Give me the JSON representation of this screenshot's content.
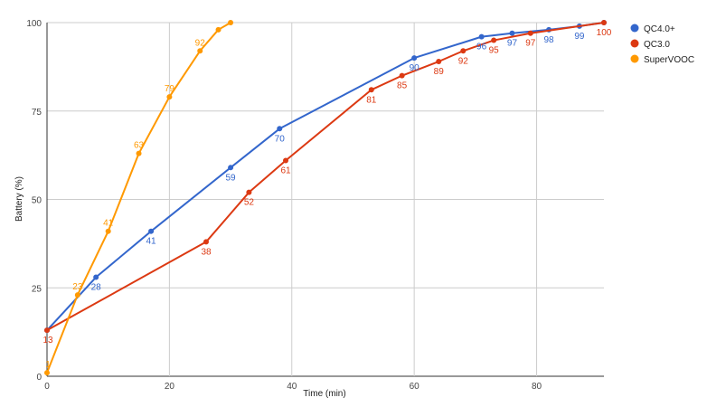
{
  "chart_data": {
    "type": "line",
    "title": "",
    "xlabel": "Time (min)",
    "ylabel": "Battery (%)",
    "xlim": [
      0,
      91
    ],
    "ylim": [
      0,
      100
    ],
    "x_ticks": [
      0,
      20,
      40,
      60,
      80
    ],
    "y_ticks": [
      0,
      25,
      50,
      75,
      100
    ],
    "grid": true,
    "legend_position": "right",
    "series": [
      {
        "name": "QC4.0+",
        "color": "#3366cc",
        "points": [
          [
            0,
            13
          ],
          [
            8,
            28
          ],
          [
            17,
            41
          ],
          [
            30,
            59
          ],
          [
            38,
            70
          ],
          [
            60,
            90
          ],
          [
            71,
            96
          ],
          [
            76,
            97
          ],
          [
            82,
            98
          ],
          [
            87,
            99
          ],
          [
            91,
            100
          ]
        ],
        "labels": [
          "",
          "28",
          "41",
          "59",
          "70",
          "90",
          "96",
          "97",
          "98",
          "99",
          ""
        ]
      },
      {
        "name": "QC3.0",
        "color": "#dc3912",
        "points": [
          [
            0,
            13
          ],
          [
            26,
            38
          ],
          [
            33,
            52
          ],
          [
            39,
            61
          ],
          [
            53,
            81
          ],
          [
            58,
            85
          ],
          [
            64,
            89
          ],
          [
            68,
            92
          ],
          [
            73,
            95
          ],
          [
            79,
            97
          ],
          [
            91,
            100
          ]
        ],
        "labels": [
          "13",
          "38",
          "52",
          "61",
          "81",
          "85",
          "89",
          "92",
          "95",
          "97",
          "100"
        ]
      },
      {
        "name": "SuperVOOC",
        "color": "#ff9900",
        "points": [
          [
            0,
            1
          ],
          [
            5,
            23
          ],
          [
            10,
            41
          ],
          [
            15,
            63
          ],
          [
            20,
            79
          ],
          [
            25,
            92
          ],
          [
            28,
            98
          ],
          [
            30,
            100
          ]
        ],
        "labels": [
          "1",
          "23",
          "41",
          "63",
          "79",
          "92",
          "",
          ""
        ]
      }
    ]
  }
}
